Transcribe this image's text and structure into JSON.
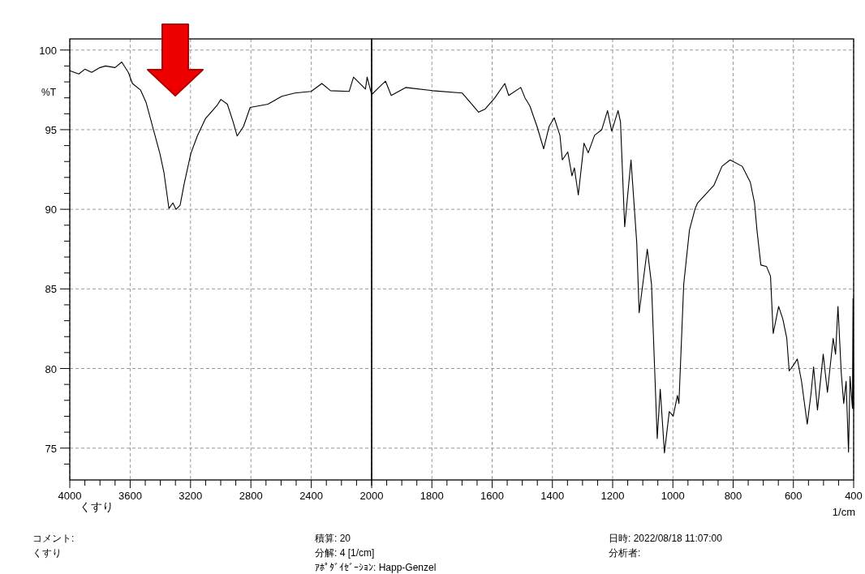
{
  "chart_data": [
    {
      "type": "line",
      "annotations": [
        "くすり",
        "コメント:",
        "くすり",
        "積算: 20",
        "分解: 4 [1/cm]",
        "ｱﾎﾟﾀﾞｲｾﾞｰｼｮﾝ: Happ-Genzel",
        "日時: 2022/08/18 11:07:00",
        "分析者:"
      ],
      "ylabel": "%T",
      "series": [
        {
          "color": "#000000",
          "x": [
            4000,
            3940,
            3900,
            3855,
            3800,
            3763,
            3700,
            3656,
            3612,
            3585,
            3532,
            3494,
            3440,
            3403,
            3376,
            3343,
            3317,
            3296,
            3269,
            3242,
            3198,
            3155,
            3101,
            3026,
            2999,
            2956,
            2918,
            2891,
            2849,
            2805,
            2687,
            2595,
            2509,
            2401,
            2330,
            2272,
            2149,
            2120,
            2041,
            2030,
            2000
          ],
          "values": [
            98.7,
            98.5,
            98.8,
            98.6,
            98.9,
            99.0,
            98.9,
            99.25,
            98.6,
            97.9,
            97.5,
            96.7,
            94.8,
            93.5,
            92.3,
            90.05,
            90.4,
            90.0,
            90.25,
            91.6,
            93.5,
            94.6,
            95.7,
            96.5,
            96.9,
            96.6,
            95.5,
            94.6,
            95.2,
            96.4,
            96.6,
            97.1,
            97.3,
            97.4,
            97.9,
            97.45,
            97.4,
            98.3,
            97.55,
            98.3,
            97.2
          ]
        }
      ],
      "xlim": [
        4000,
        2000
      ],
      "xticks": [
        4000,
        {
          "value": 3900,
          "label": null
        },
        {
          "value": 3800,
          "label": null
        },
        {
          "value": 3700,
          "label": null
        },
        3600,
        {
          "value": 3500,
          "label": null
        },
        {
          "value": 3400,
          "label": null
        },
        {
          "value": 3300,
          "label": null
        },
        3200,
        {
          "value": 3100,
          "label": null
        },
        {
          "value": 3000,
          "label": null
        },
        {
          "value": 2900,
          "label": null
        },
        2800,
        {
          "value": 2700,
          "label": null
        },
        {
          "value": 2600,
          "label": null
        },
        {
          "value": 2500,
          "label": null
        },
        2400,
        {
          "value": 2300,
          "label": null
        },
        {
          "value": 2200,
          "label": null
        },
        {
          "value": 2100,
          "label": null
        },
        {
          "value": 2000,
          "label": null
        }
      ],
      "ylim": [
        73,
        100.7
      ],
      "yticks": [
        {
          "value": 74,
          "label": null
        },
        75,
        {
          "value": 76,
          "label": null
        },
        {
          "value": 77,
          "label": null
        },
        {
          "value": 78,
          "label": null
        },
        {
          "value": 79,
          "label": null
        },
        80,
        {
          "value": 81,
          "label": null
        },
        {
          "value": 82,
          "label": null
        },
        {
          "value": 83,
          "label": null
        },
        {
          "value": 84,
          "label": null
        },
        85,
        {
          "value": 86,
          "label": null
        },
        {
          "value": 87,
          "label": null
        },
        {
          "value": 88,
          "label": null
        },
        {
          "value": 89,
          "label": null
        },
        90,
        {
          "value": 91,
          "label": null
        },
        {
          "value": 92,
          "label": null
        },
        {
          "value": 93,
          "label": null
        },
        {
          "value": 94,
          "label": null
        },
        95,
        {
          "value": 96,
          "label": null
        },
        {
          "value": 97,
          "label": null
        },
        {
          "value": 98,
          "label": null
        },
        {
          "value": 99,
          "label": null
        },
        100
      ],
      "grid": true,
      "marker": "none",
      "line_style": "solid"
    },
    {
      "type": "line",
      "xlabel": "1/cm",
      "series": [
        {
          "color": "#000000",
          "x": [
            2000,
            1976,
            1954,
            1935,
            1887,
            1798,
            1699,
            1645,
            1623,
            1591,
            1558,
            1545,
            1505,
            1491,
            1475,
            1451,
            1429,
            1411,
            1394,
            1375,
            1367,
            1349,
            1335,
            1327,
            1314,
            1295,
            1281,
            1260,
            1236,
            1217,
            1203,
            1182,
            1174,
            1160,
            1139,
            1120,
            1112,
            1085,
            1071,
            1052,
            1042,
            1028,
            1012,
            999,
            985,
            980,
            964,
            945,
            926,
            918,
            864,
            837,
            810,
            770,
            743,
            729,
            721,
            708,
            689,
            676,
            667,
            649,
            635,
            622,
            614,
            600,
            587,
            573,
            554,
            541,
            533,
            520,
            501,
            487,
            468,
            460,
            452,
            441,
            433,
            425,
            417,
            412,
            404,
            402,
            400
          ],
          "values": [
            97.2,
            97.65,
            98.05,
            97.15,
            97.65,
            97.45,
            97.3,
            96.1,
            96.3,
            97.0,
            97.9,
            97.15,
            97.65,
            97.0,
            96.5,
            95.2,
            93.8,
            95.2,
            95.75,
            94.65,
            93.1,
            93.6,
            92.1,
            92.6,
            90.9,
            94.15,
            93.55,
            94.65,
            95.0,
            96.2,
            94.9,
            96.2,
            95.5,
            88.9,
            93.1,
            87.9,
            83.5,
            87.5,
            85.3,
            75.6,
            78.7,
            74.7,
            77.3,
            77.0,
            78.3,
            77.8,
            85.3,
            88.7,
            90.05,
            90.4,
            91.5,
            92.7,
            93.1,
            92.7,
            91.7,
            90.4,
            88.7,
            86.5,
            86.4,
            85.8,
            82.2,
            83.9,
            83.1,
            81.9,
            79.85,
            80.2,
            80.6,
            79.2,
            76.5,
            78.5,
            80.1,
            77.4,
            80.9,
            78.5,
            81.9,
            80.9,
            83.9,
            79.7,
            77.8,
            79.2,
            74.75,
            79.5,
            77.5,
            84.4,
            77.5
          ]
        }
      ],
      "xlim": [
        2000,
        400
      ],
      "xticks": [
        2000,
        {
          "value": 1950,
          "label": null
        },
        {
          "value": 1900,
          "label": null
        },
        {
          "value": 1850,
          "label": null
        },
        1800,
        {
          "value": 1750,
          "label": null
        },
        {
          "value": 1700,
          "label": null
        },
        {
          "value": 1650,
          "label": null
        },
        1600,
        {
          "value": 1550,
          "label": null
        },
        {
          "value": 1500,
          "label": null
        },
        {
          "value": 1450,
          "label": null
        },
        1400,
        {
          "value": 1350,
          "label": null
        },
        {
          "value": 1300,
          "label": null
        },
        {
          "value": 1250,
          "label": null
        },
        1200,
        {
          "value": 1150,
          "label": null
        },
        {
          "value": 1100,
          "label": null
        },
        {
          "value": 1050,
          "label": null
        },
        1000,
        {
          "value": 950,
          "label": null
        },
        {
          "value": 900,
          "label": null
        },
        {
          "value": 850,
          "label": null
        },
        800,
        {
          "value": 750,
          "label": null
        },
        {
          "value": 700,
          "label": null
        },
        {
          "value": 650,
          "label": null
        },
        600,
        {
          "value": 550,
          "label": null
        },
        {
          "value": 500,
          "label": null
        },
        {
          "value": 450,
          "label": null
        },
        400
      ],
      "ylim": [
        73,
        100.7
      ],
      "yticks": [
        75,
        80,
        85,
        90,
        95,
        100
      ],
      "tick_labels": "x",
      "grid": true,
      "marker": "none",
      "line_style": "solid"
    }
  ]
}
